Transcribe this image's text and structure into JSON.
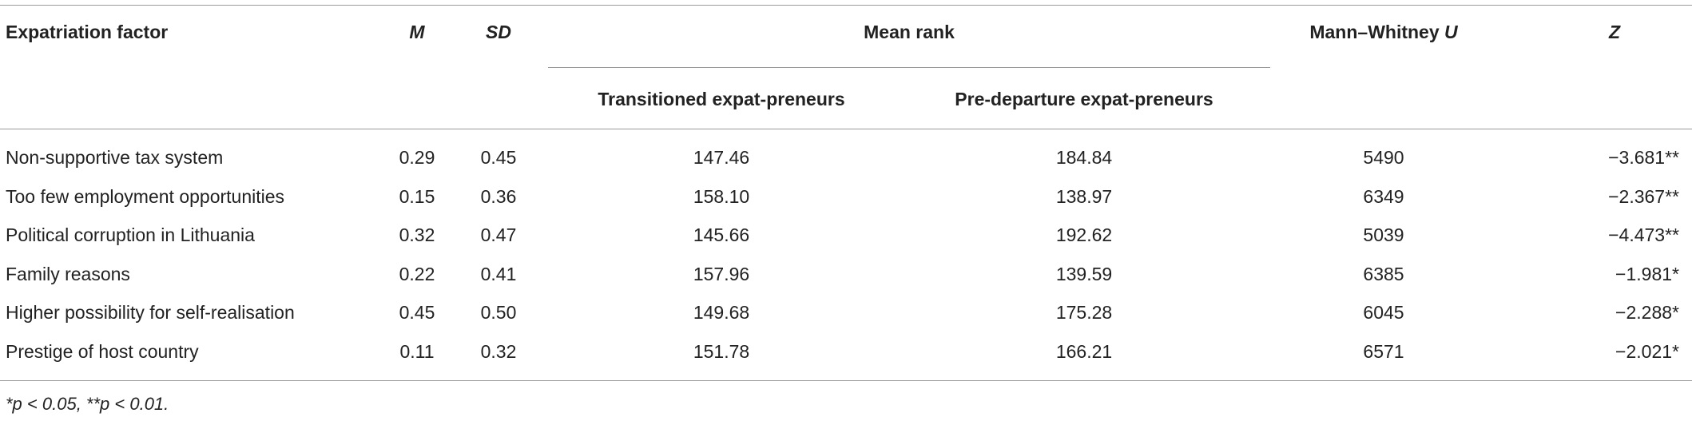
{
  "table": {
    "header": {
      "factor": "Expatriation factor",
      "m": "M",
      "sd": "SD",
      "mean_rank": "Mean rank",
      "transitioned": "Transitioned expat-preneurs",
      "pre_departure": "Pre-departure expat-preneurs",
      "mann_whitney": [
        "Mann–Whitney",
        "U"
      ],
      "z": "Z"
    },
    "rows": [
      [
        "Non-supportive tax system",
        "0.29",
        "0.45",
        "147.46",
        "184.84",
        "5490",
        "−3.681**"
      ],
      [
        "Too few employment opportunities",
        "0.15",
        "0.36",
        "158.10",
        "138.97",
        "6349",
        "−2.367**"
      ],
      [
        "Political corruption in Lithuania",
        "0.32",
        "0.47",
        "145.66",
        "192.62",
        "5039",
        "−4.473**"
      ],
      [
        "Family reasons",
        "0.22",
        "0.41",
        "157.96",
        "139.59",
        "6385",
        "−1.981*"
      ],
      [
        "Higher possibility for self-realisation",
        "0.45",
        "0.50",
        "149.68",
        "175.28",
        "6045",
        "−2.288*"
      ],
      [
        "Prestige of host country",
        "0.11",
        "0.32",
        "151.78",
        "166.21",
        "6571",
        "−2.021*"
      ]
    ],
    "footnote": "*p < 0.05, **p < 0.01."
  }
}
